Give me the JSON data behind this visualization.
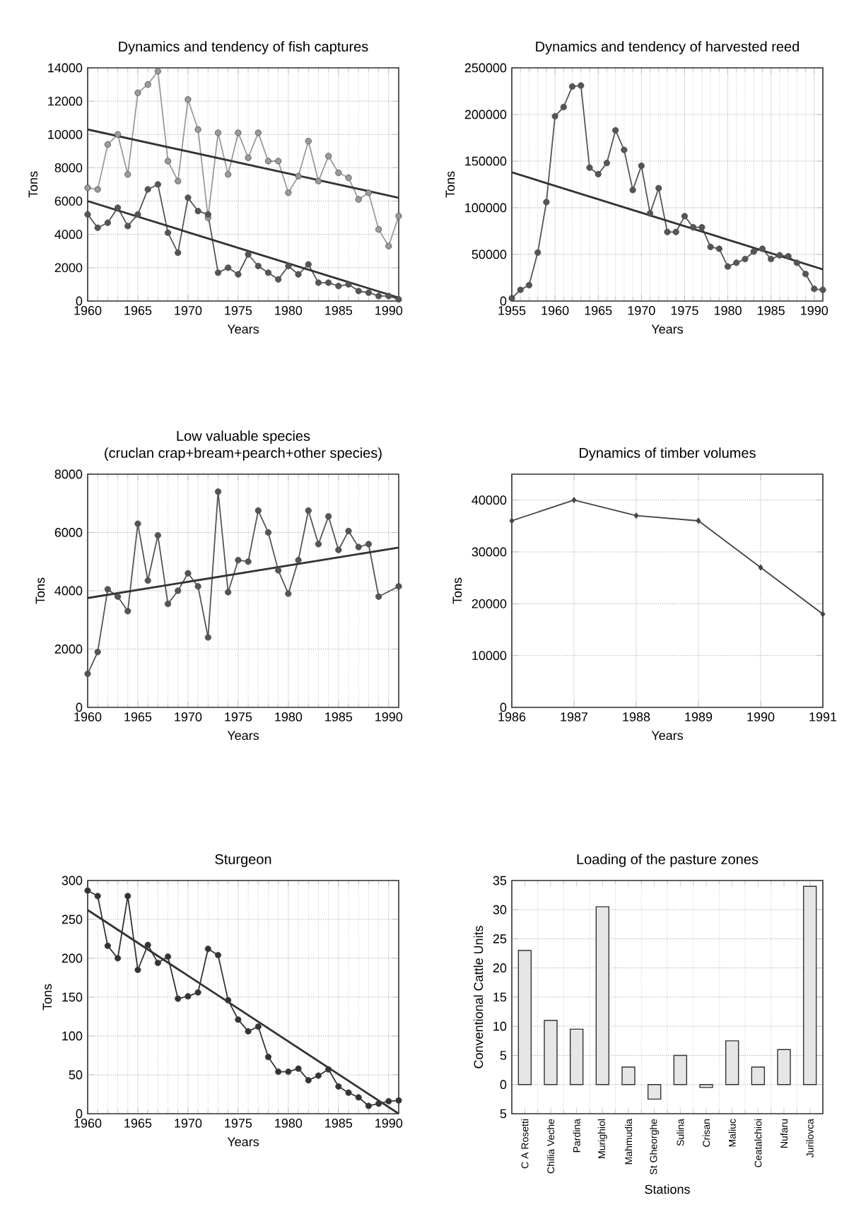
{
  "chart_data": [
    {
      "type": "line",
      "title": "Dynamics and tendency of fish captures",
      "xlabel": "Years",
      "ylabel": "Tons",
      "xlim": [
        1960,
        1991
      ],
      "xticks": [
        1960,
        1965,
        1970,
        1975,
        1980,
        1985,
        1990
      ],
      "ylim": [
        0,
        14000
      ],
      "yticks": [
        0,
        2000,
        4000,
        6000,
        8000,
        10000,
        12000,
        14000
      ],
      "grid": true,
      "marker": "circle",
      "series": [
        {
          "color": "#9a9a9a",
          "x": [
            1960,
            1961,
            1962,
            1963,
            1964,
            1965,
            1966,
            1967,
            1968,
            1969,
            1970,
            1971,
            1972,
            1973,
            1974,
            1975,
            1976,
            1977,
            1978,
            1979,
            1980,
            1981,
            1982,
            1983,
            1984,
            1985,
            1986,
            1987,
            1988,
            1989,
            1990,
            1991
          ],
          "values": [
            6800,
            6700,
            9400,
            10000,
            7600,
            12500,
            13000,
            13800,
            8400,
            7200,
            12100,
            10300,
            5000,
            10100,
            7600,
            10100,
            8600,
            10100,
            8400,
            8400,
            6500,
            7500,
            9600,
            7200,
            8700,
            7700,
            7400,
            6100,
            6500,
            4300,
            3300,
            5100
          ]
        },
        {
          "color": "#555555",
          "x": [
            1960,
            1961,
            1962,
            1963,
            1964,
            1965,
            1966,
            1967,
            1968,
            1969,
            1970,
            1971,
            1972,
            1973,
            1974,
            1975,
            1976,
            1977,
            1978,
            1979,
            1980,
            1981,
            1982,
            1983,
            1984,
            1985,
            1986,
            1987,
            1988,
            1989,
            1990,
            1991
          ],
          "values": [
            5200,
            4400,
            4700,
            5600,
            4500,
            5200,
            6700,
            7000,
            4100,
            2900,
            6200,
            5400,
            5200,
            1700,
            2000,
            1600,
            2800,
            2100,
            1700,
            1300,
            2100,
            1600,
            2200,
            1100,
            1100,
            900,
            1000,
            600,
            500,
            300,
            300,
            100
          ]
        },
        {
          "color": "#333333",
          "marker": "none",
          "x": [
            1960,
            1991
          ],
          "values": [
            10300,
            6200
          ]
        },
        {
          "color": "#333333",
          "marker": "none",
          "x": [
            1960,
            1991
          ],
          "values": [
            6000,
            200
          ]
        }
      ]
    },
    {
      "type": "line",
      "title": "Dynamics and tendency of harvested reed",
      "xlabel": "Years",
      "ylabel": "Tons",
      "xlim": [
        1955,
        1991
      ],
      "xticks": [
        1955,
        1960,
        1965,
        1970,
        1975,
        1980,
        1985,
        1990
      ],
      "ylim": [
        0,
        250000
      ],
      "yticks": [
        0,
        50000,
        100000,
        150000,
        200000,
        250000
      ],
      "grid": true,
      "marker": "circle",
      "series": [
        {
          "color": "#555555",
          "x": [
            1955,
            1956,
            1957,
            1958,
            1959,
            1960,
            1961,
            1962,
            1963,
            1964,
            1965,
            1966,
            1967,
            1968,
            1969,
            1970,
            1971,
            1972,
            1973,
            1974,
            1975,
            1976,
            1977,
            1978,
            1979,
            1980,
            1981,
            1982,
            1983,
            1984,
            1985,
            1986,
            1987,
            1988,
            1989,
            1990,
            1991
          ],
          "values": [
            3000,
            12000,
            17000,
            52000,
            106000,
            198000,
            208000,
            230000,
            231000,
            143000,
            136000,
            148000,
            183000,
            162000,
            119000,
            145000,
            94000,
            121000,
            74000,
            74000,
            91000,
            79000,
            79000,
            58000,
            56000,
            37000,
            41000,
            45000,
            53000,
            56000,
            45000,
            49000,
            48000,
            41000,
            29000,
            13000,
            12000
          ]
        },
        {
          "color": "#333333",
          "marker": "none",
          "x": [
            1955,
            1991
          ],
          "values": [
            138000,
            34000
          ]
        }
      ]
    },
    {
      "type": "line",
      "title": "Low valuable species",
      "subtitle": "(cruclan crap+bream+pearch+other species)",
      "ylabel": "Tons",
      "xlabel": "Years",
      "xlim": [
        1960,
        1991
      ],
      "xticks": [
        1960,
        1965,
        1970,
        1975,
        1980,
        1985,
        1990
      ],
      "ylim": [
        0,
        8000
      ],
      "yticks": [
        0,
        2000,
        4000,
        6000,
        8000
      ],
      "grid": true,
      "marker": "circle",
      "series": [
        {
          "color": "#555555",
          "x": [
            1960,
            1961,
            1962,
            1963,
            1964,
            1965,
            1966,
            1967,
            1968,
            1969,
            1970,
            1971,
            1972,
            1973,
            1974,
            1975,
            1976,
            1977,
            1978,
            1979,
            1980,
            1981,
            1982,
            1983,
            1984,
            1985,
            1986,
            1987,
            1988,
            1989,
            1991
          ],
          "values": [
            1150,
            1900,
            4050,
            3800,
            3300,
            6300,
            4350,
            5900,
            3550,
            4000,
            4600,
            4150,
            2400,
            7400,
            3950,
            5050,
            5000,
            6750,
            6000,
            4700,
            3900,
            5050,
            6750,
            5600,
            6550,
            5400,
            6050,
            5500,
            5600,
            3800,
            4150
          ]
        },
        {
          "color": "#333333",
          "marker": "none",
          "x": [
            1960,
            1991
          ],
          "values": [
            3750,
            5480
          ]
        }
      ]
    },
    {
      "type": "line",
      "title": "Dynamics of timber volumes",
      "xlabel": "Years",
      "ylabel": "Tons",
      "xlim": [
        1986,
        1991
      ],
      "xticks": [
        1986,
        1987,
        1988,
        1989,
        1990,
        1991
      ],
      "ylim": [
        0,
        45000
      ],
      "yticks": [
        0,
        10000,
        20000,
        30000,
        40000
      ],
      "grid": true,
      "marker": "diamond",
      "series": [
        {
          "color": "#444444",
          "x": [
            1986,
            1987,
            1988,
            1989,
            1990,
            1991
          ],
          "values": [
            36000,
            40000,
            37000,
            36000,
            27000,
            18000
          ]
        }
      ]
    },
    {
      "type": "line",
      "title": "Sturgeon",
      "xlabel": "Years",
      "ylabel": "Tons",
      "xlim": [
        1960,
        1991
      ],
      "xticks": [
        1960,
        1965,
        1970,
        1975,
        1980,
        1985,
        1990
      ],
      "ylim": [
        0,
        300
      ],
      "yticks": [
        0,
        50,
        100,
        150,
        200,
        250,
        300
      ],
      "grid": true,
      "marker": "circle",
      "series": [
        {
          "color": "#333333",
          "x": [
            1960,
            1961,
            1962,
            1963,
            1964,
            1965,
            1966,
            1967,
            1968,
            1969,
            1970,
            1971,
            1972,
            1973,
            1974,
            1975,
            1976,
            1977,
            1978,
            1979,
            1980,
            1981,
            1982,
            1983,
            1984,
            1985,
            1986,
            1987,
            1988,
            1989,
            1990,
            1991
          ],
          "values": [
            287,
            280,
            216,
            200,
            280,
            185,
            217,
            194,
            202,
            148,
            151,
            156,
            212,
            204,
            146,
            121,
            106,
            112,
            73,
            54,
            54,
            58,
            43,
            49,
            57,
            35,
            27,
            21,
            10,
            13,
            16,
            17
          ]
        },
        {
          "color": "#333333",
          "marker": "none",
          "x": [
            1960,
            1991
          ],
          "values": [
            262,
            0
          ]
        }
      ]
    },
    {
      "type": "bar",
      "title": "Loading of the pasture zones",
      "xlabel": "Stations",
      "ylabel": "Conventional Cattle Units",
      "categories": [
        "C A Rosetti",
        "Chilia Veche",
        "Pardina",
        "Murighiol",
        "Mahmudia",
        "St Gheorghe",
        "Sulina",
        "Crisan",
        "Maliuc",
        "Ceatalchioi",
        "Nufaru",
        "Jurilovca"
      ],
      "values": [
        23,
        11,
        9.5,
        30.5,
        3,
        -2.5,
        5,
        -0.5,
        7.5,
        3,
        6,
        34
      ],
      "color": "#e6e6e6",
      "ylim": [
        -5,
        35
      ],
      "yticks": [
        {
          "value": -5,
          "label": "5"
        },
        0,
        5,
        10,
        15,
        20,
        25,
        30,
        35
      ],
      "grid": true
    }
  ]
}
